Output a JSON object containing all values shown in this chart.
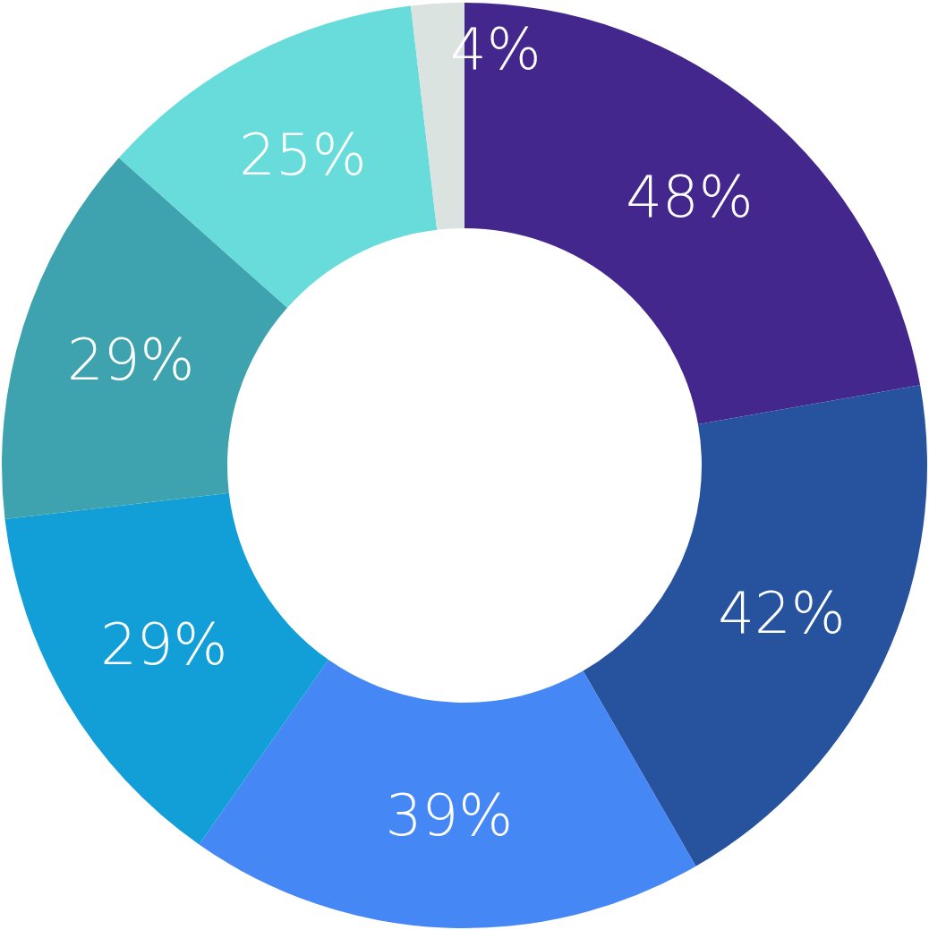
{
  "chart_data": {
    "type": "donut",
    "categories": [
      null,
      null,
      null,
      null,
      null,
      null,
      null
    ],
    "values": [
      48,
      42,
      39,
      29,
      29,
      25,
      4
    ],
    "colors": [
      "#43278c",
      "#26529e",
      "#4587f5",
      "#129ed7",
      "#3ea3af",
      "#68dbdb",
      "#dbe3e0"
    ],
    "value_labels": [
      "48%",
      "42%",
      "39%",
      "29%",
      "29%",
      "25%",
      "4%"
    ]
  }
}
